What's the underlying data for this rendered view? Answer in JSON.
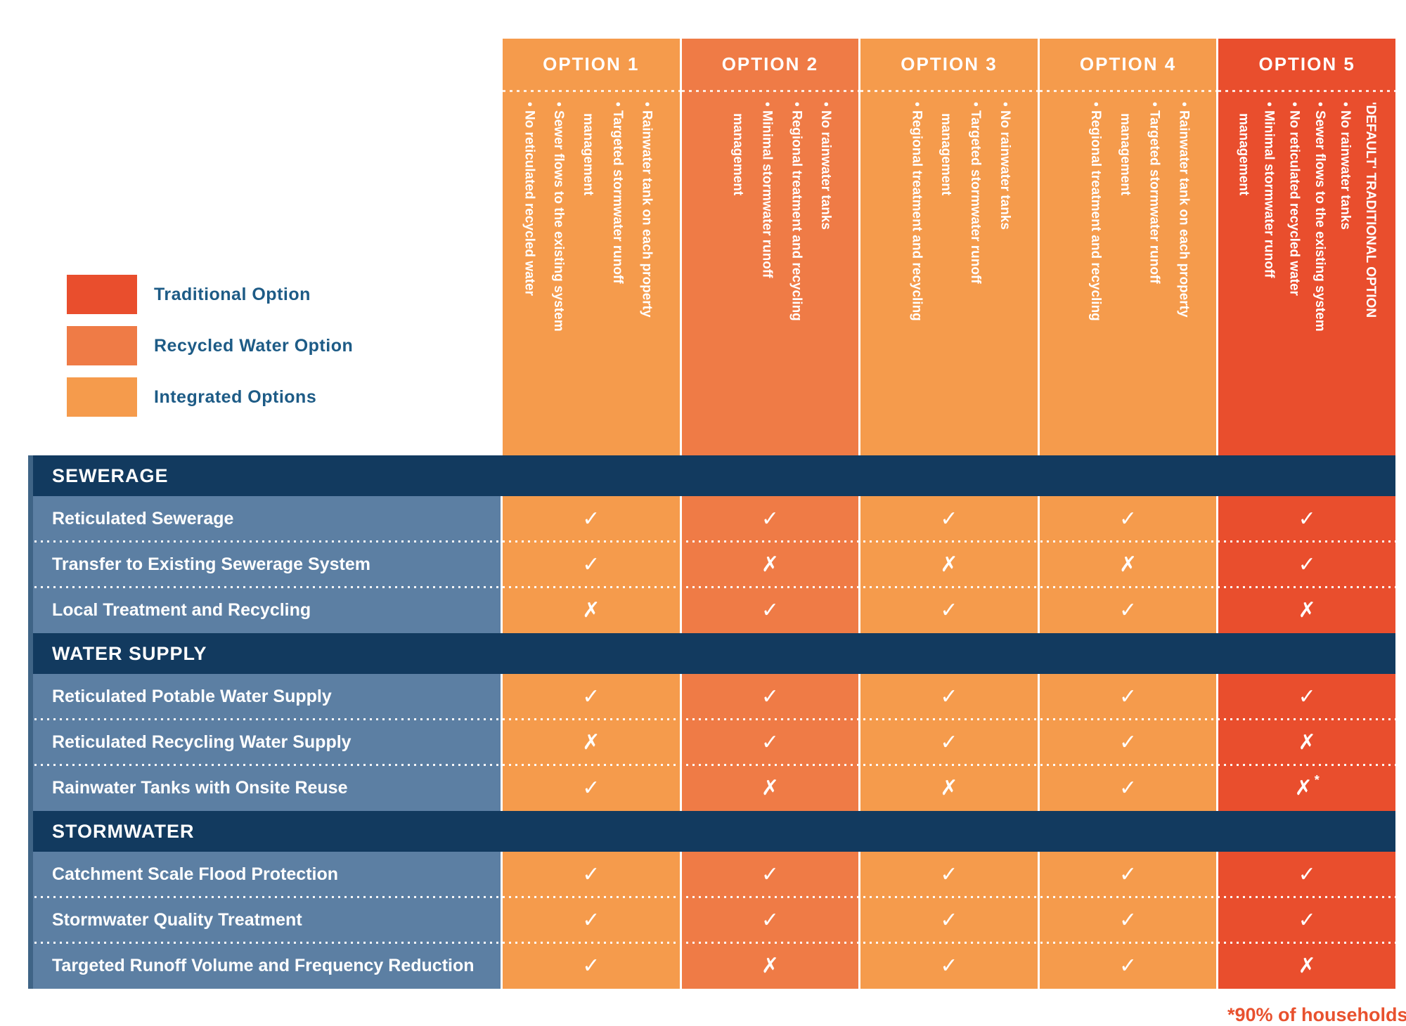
{
  "legend": {
    "items": [
      {
        "name": "traditional",
        "label": "Traditional Option",
        "color": "#E94E2D"
      },
      {
        "name": "recycled-water",
        "label": "Recycled Water Option",
        "color": "#EF7B46"
      },
      {
        "name": "integrated",
        "label": "Integrated Options",
        "color": "#F59B4C"
      }
    ]
  },
  "table": {
    "options": [
      {
        "title": "OPTION 1",
        "category": "integrated",
        "color": "#F59B4C",
        "bullets": [
          {
            "text": "Rainwater tank on each property"
          },
          {
            "text": "Targeted stormwater runoff\nmanagement"
          },
          {
            "text": "Sewer flows to the existing system"
          },
          {
            "text": "No reticulated recycled water"
          }
        ]
      },
      {
        "title": "OPTION 2",
        "category": "recycled-water",
        "color": "#EF7B46",
        "bullets": [
          {
            "text": "No rainwater tanks"
          },
          {
            "text": "Regional treatment and recycling"
          },
          {
            "text": "Minimal stormwater runoff\nmanagement"
          }
        ]
      },
      {
        "title": "OPTION 3",
        "category": "integrated",
        "color": "#F59B4C",
        "bullets": [
          {
            "text": "No rainwater tanks"
          },
          {
            "text": "Targeted stormwater runoff\nmanagement"
          },
          {
            "text": "Regional treatment and recycling"
          }
        ]
      },
      {
        "title": "OPTION 4",
        "category": "integrated",
        "color": "#F59B4C",
        "bullets": [
          {
            "text": "Rainwater tank on each property"
          },
          {
            "text": "Targeted stormwater runoff\nmanagement"
          },
          {
            "text": "Regional treatment and recycling"
          }
        ]
      },
      {
        "title": "OPTION 5",
        "category": "traditional",
        "color": "#E94E2D",
        "bullets": [
          {
            "text": "'DEFAULT' TRADITIONAL OPTION",
            "style": "header"
          },
          {
            "text": "No rainwater tanks"
          },
          {
            "text": "Sewer flows to the existing system"
          },
          {
            "text": "No reticulated recycled water"
          },
          {
            "text": "Minimal stormwater runoff\nmanagement"
          }
        ]
      }
    ],
    "sections": [
      {
        "title": "SEWERAGE",
        "rows": [
          {
            "label": "Reticulated Sewerage",
            "marks": [
              {
                "glyph": "✓"
              },
              {
                "glyph": "✓"
              },
              {
                "glyph": "✓"
              },
              {
                "glyph": "✓"
              },
              {
                "glyph": "✓"
              }
            ]
          },
          {
            "label": "Transfer to Existing Sewerage System",
            "marks": [
              {
                "glyph": "✓"
              },
              {
                "glyph": "✗"
              },
              {
                "glyph": "✗"
              },
              {
                "glyph": "✗"
              },
              {
                "glyph": "✓"
              }
            ]
          },
          {
            "label": "Local Treatment and Recycling",
            "marks": [
              {
                "glyph": "✗"
              },
              {
                "glyph": "✓"
              },
              {
                "glyph": "✓"
              },
              {
                "glyph": "✓"
              },
              {
                "glyph": "✗"
              }
            ]
          }
        ]
      },
      {
        "title": "WATER SUPPLY",
        "rows": [
          {
            "label": "Reticulated Potable Water Supply",
            "marks": [
              {
                "glyph": "✓"
              },
              {
                "glyph": "✓"
              },
              {
                "glyph": "✓"
              },
              {
                "glyph": "✓"
              },
              {
                "glyph": "✓"
              }
            ]
          },
          {
            "label": "Reticulated Recycling Water Supply",
            "marks": [
              {
                "glyph": "✗"
              },
              {
                "glyph": "✓"
              },
              {
                "glyph": "✓"
              },
              {
                "glyph": "✓"
              },
              {
                "glyph": "✗"
              }
            ]
          },
          {
            "label": "Rainwater Tanks with Onsite Reuse",
            "marks": [
              {
                "glyph": "✓"
              },
              {
                "glyph": "✗"
              },
              {
                "glyph": "✗"
              },
              {
                "glyph": "✓"
              },
              {
                "glyph": "✗",
                "note": "*"
              }
            ]
          }
        ]
      },
      {
        "title": "STORMWATER",
        "rows": [
          {
            "label": "Catchment Scale Flood Protection",
            "marks": [
              {
                "glyph": "✓"
              },
              {
                "glyph": "✓"
              },
              {
                "glyph": "✓"
              },
              {
                "glyph": "✓"
              },
              {
                "glyph": "✓"
              }
            ]
          },
          {
            "label": "Stormwater Quality Treatment",
            "marks": [
              {
                "glyph": "✓"
              },
              {
                "glyph": "✓"
              },
              {
                "glyph": "✓"
              },
              {
                "glyph": "✓"
              },
              {
                "glyph": "✓"
              }
            ]
          },
          {
            "label": "Targeted Runoff Volume and Frequency Reduction",
            "marks": [
              {
                "glyph": "✓"
              },
              {
                "glyph": "✗"
              },
              {
                "glyph": "✓"
              },
              {
                "glyph": "✓"
              },
              {
                "glyph": "✗"
              }
            ]
          }
        ]
      }
    ]
  },
  "footnote": {
    "text": "*90% of households",
    "color": "#E8512E"
  }
}
